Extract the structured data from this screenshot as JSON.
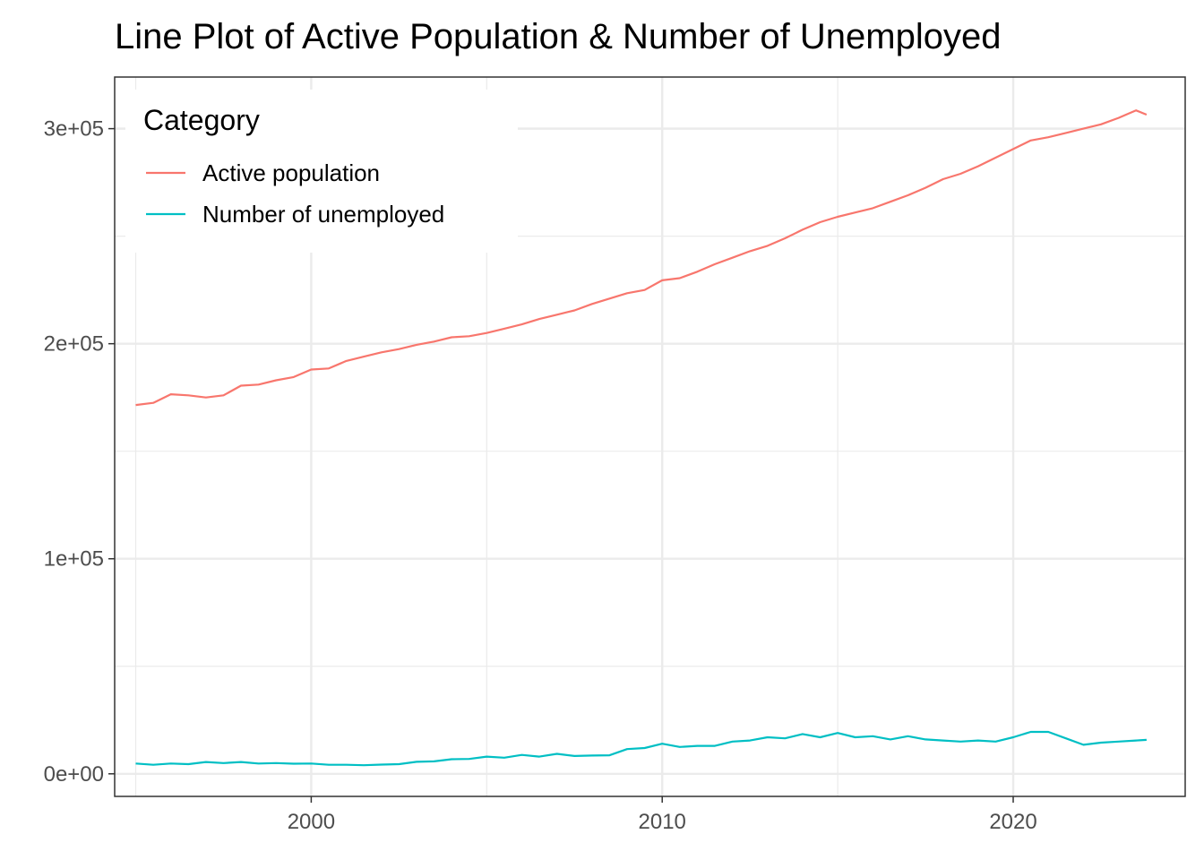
{
  "chart_data": {
    "type": "line",
    "title": "Line Plot of Active Population & Number of Unemployed",
    "xlabel": "",
    "ylabel": "",
    "xlim": [
      1994.4,
      2024.9
    ],
    "ylim": [
      -10500,
      324000
    ],
    "x_ticks": [
      2000,
      2010,
      2020
    ],
    "x_tick_labels": [
      "2000",
      "2010",
      "2020"
    ],
    "y_ticks": [
      0,
      100000,
      200000,
      300000
    ],
    "y_tick_labels": [
      "0e+00",
      "1e+05",
      "2e+05",
      "3e+05"
    ],
    "grid": true,
    "legend": {
      "title": "Category",
      "position": "top-left"
    },
    "series": [
      {
        "name": "Active population",
        "color": "#F8766D",
        "x": [
          1995.0,
          1995.5,
          1996.0,
          1996.5,
          1997.0,
          1997.5,
          1998.0,
          1998.5,
          1999.0,
          1999.5,
          2000.0,
          2000.5,
          2001.0,
          2001.5,
          2002.0,
          2002.5,
          2003.0,
          2003.5,
          2004.0,
          2004.5,
          2005.0,
          2005.5,
          2006.0,
          2006.5,
          2007.0,
          2007.5,
          2008.0,
          2008.5,
          2009.0,
          2009.5,
          2010.0,
          2010.5,
          2011.0,
          2011.5,
          2012.0,
          2012.5,
          2013.0,
          2013.5,
          2014.0,
          2014.5,
          2015.0,
          2015.5,
          2016.0,
          2016.5,
          2017.0,
          2017.5,
          2018.0,
          2018.5,
          2019.0,
          2019.5,
          2020.0,
          2020.5,
          2021.0,
          2021.5,
          2022.0,
          2022.5,
          2023.0,
          2023.5,
          2023.8
        ],
        "y": [
          171500,
          172500,
          176500,
          176000,
          175000,
          176000,
          180500,
          181000,
          183000,
          184500,
          188000,
          188500,
          192000,
          194000,
          196000,
          197500,
          199500,
          201000,
          203000,
          203500,
          205000,
          207000,
          209000,
          211500,
          213500,
          215500,
          218500,
          221000,
          223500,
          225000,
          229500,
          230500,
          233500,
          237000,
          240000,
          243000,
          245500,
          249000,
          253000,
          256500,
          259000,
          261000,
          263000,
          266000,
          269000,
          272500,
          276500,
          279000,
          282500,
          286500,
          290500,
          294500,
          296000,
          298000,
          300000,
          302000,
          305000,
          308500,
          306500
        ]
      },
      {
        "name": "Number of unemployed",
        "color": "#00BFC4",
        "x": [
          1995.0,
          1995.5,
          1996.0,
          1996.5,
          1997.0,
          1997.5,
          1998.0,
          1998.5,
          1999.0,
          1999.5,
          2000.0,
          2000.5,
          2001.0,
          2001.5,
          2002.0,
          2002.5,
          2003.0,
          2003.5,
          2004.0,
          2004.5,
          2005.0,
          2005.5,
          2006.0,
          2006.5,
          2007.0,
          2007.5,
          2008.0,
          2008.5,
          2009.0,
          2009.5,
          2010.0,
          2010.5,
          2011.0,
          2011.5,
          2012.0,
          2012.5,
          2013.0,
          2013.5,
          2014.0,
          2014.5,
          2015.0,
          2015.5,
          2016.0,
          2016.5,
          2017.0,
          2017.5,
          2018.0,
          2018.5,
          2019.0,
          2019.5,
          2020.0,
          2020.5,
          2021.0,
          2021.5,
          2022.0,
          2022.5,
          2023.0,
          2023.5,
          2023.8
        ],
        "y": [
          4800,
          4200,
          4800,
          4500,
          5500,
          5000,
          5500,
          4800,
          5000,
          4700,
          4800,
          4200,
          4200,
          4000,
          4300,
          4500,
          5600,
          5800,
          6800,
          6900,
          8000,
          7500,
          8800,
          8000,
          9300,
          8300,
          8500,
          8600,
          11500,
          12000,
          14000,
          12500,
          13000,
          13000,
          15000,
          15500,
          17000,
          16500,
          18500,
          17000,
          19000,
          17000,
          17500,
          16000,
          17500,
          16000,
          15500,
          15000,
          15500,
          15000,
          17000,
          19500,
          19500,
          16500,
          13500,
          14500,
          15000,
          15500,
          15800
        ]
      }
    ]
  }
}
